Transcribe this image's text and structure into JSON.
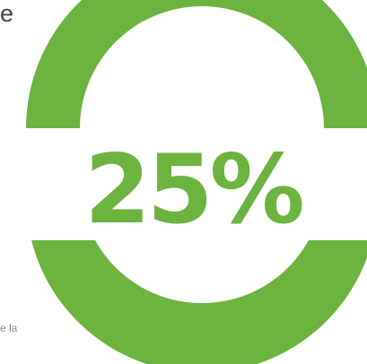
{
  "top_text_fragment": "e",
  "bottom_text_fragment": "e la",
  "stat": {
    "value": 25,
    "label": "25%"
  },
  "colors": {
    "accent": "#6db33f",
    "background": "#ffffff"
  }
}
